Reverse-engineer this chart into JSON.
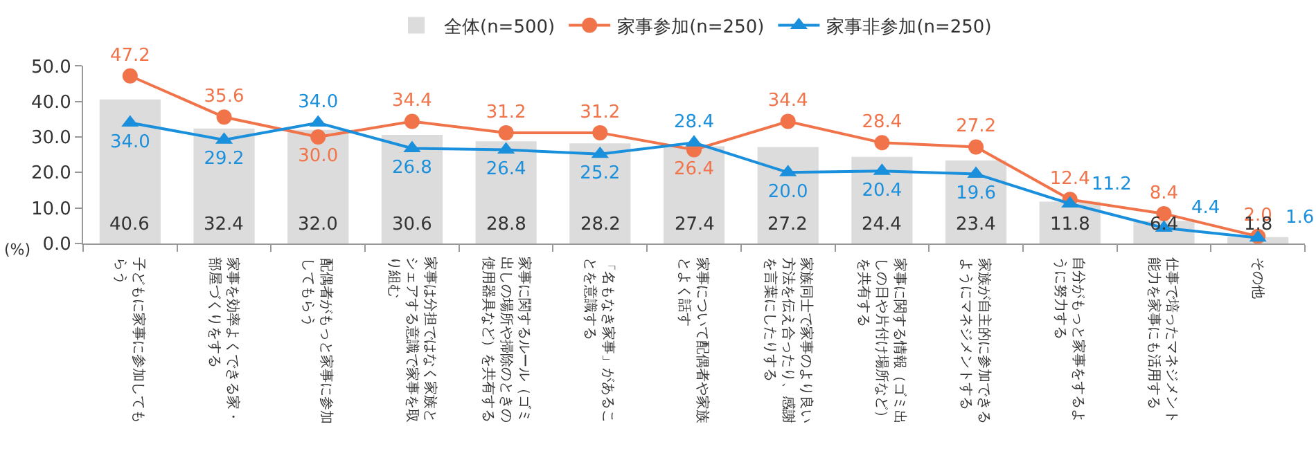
{
  "chart_data": {
    "type": "bar",
    "ylabel": "(%)",
    "categories": [
      "子どもに家事に参加してもらう",
      "家事を効率よくできる家・部屋づくりをする",
      "配偶者がもっと家事に参加してもらう",
      "家事は分担ではなく家族とシェアする意識で家事を取り組む",
      "家事に関するルール（ゴミ出しの場所や掃除のときの使用器具など）を共有する",
      "「名もなき家事」があることを意識する",
      "家事について配偶者や家族とよく話す",
      "家族同士で家事のより良い方法を伝え合ったり、感謝を言葉にしたりする",
      "家事に関する情報（ゴミ出しの日や片付け場所など）を共有する",
      "家族が自主的に参加できるようにマネジメントする",
      "自分がもっと家事をするように努力する",
      "仕事で培ったマネジメント能力を家事にも活用する",
      "その他"
    ],
    "series": [
      {
        "name": "全体(n=500)",
        "color": "#dcdcdc",
        "values": [
          40.6,
          32.4,
          32.0,
          30.6,
          28.8,
          28.2,
          27.4,
          27.2,
          24.4,
          23.4,
          11.8,
          6.4,
          1.8
        ],
        "value_labels": [
          "40.6",
          "32.4",
          "32.0",
          "30.6",
          "28.8",
          "28.2",
          "27.4",
          "27.2",
          "24.4",
          "23.4",
          "11.8",
          "6.4",
          "1.8"
        ]
      },
      {
        "name": "家事参加(n=250)",
        "type": "line",
        "color": "#f0734a",
        "marker": "circle",
        "values": [
          47.2,
          35.6,
          30.0,
          34.4,
          31.2,
          31.2,
          26.4,
          34.4,
          28.4,
          27.2,
          12.4,
          8.4,
          2.0
        ],
        "value_labels": [
          "47.2",
          "35.6",
          "30.0",
          "34.4",
          "31.2",
          "31.2",
          "26.4",
          "34.4",
          "28.4",
          "27.2",
          "12.4",
          "8.4",
          "2.0"
        ]
      },
      {
        "name": "家事非参加(n=250)",
        "type": "line",
        "color": "#1a8fdb",
        "marker": "triangle",
        "values": [
          34.0,
          29.2,
          34.0,
          26.8,
          26.4,
          25.2,
          28.4,
          20.0,
          20.4,
          19.6,
          11.2,
          4.4,
          1.6
        ],
        "value_labels": [
          "34.0",
          "29.2",
          "34.0",
          "26.8",
          "26.4",
          "25.2",
          "28.4",
          "20.0",
          "20.4",
          "19.6",
          "11.2",
          "4.4",
          "1.6"
        ]
      }
    ],
    "ylim": [
      0,
      50
    ],
    "yticks": [
      {
        "value": 0,
        "label": "0.0"
      },
      {
        "value": 10,
        "label": "10.0"
      },
      {
        "value": 20,
        "label": "20.0"
      },
      {
        "value": 30,
        "label": "30.0"
      },
      {
        "value": 40,
        "label": "40.0"
      },
      {
        "value": 50,
        "label": "50.0"
      }
    ],
    "legend": "top",
    "line_style": "solid"
  }
}
